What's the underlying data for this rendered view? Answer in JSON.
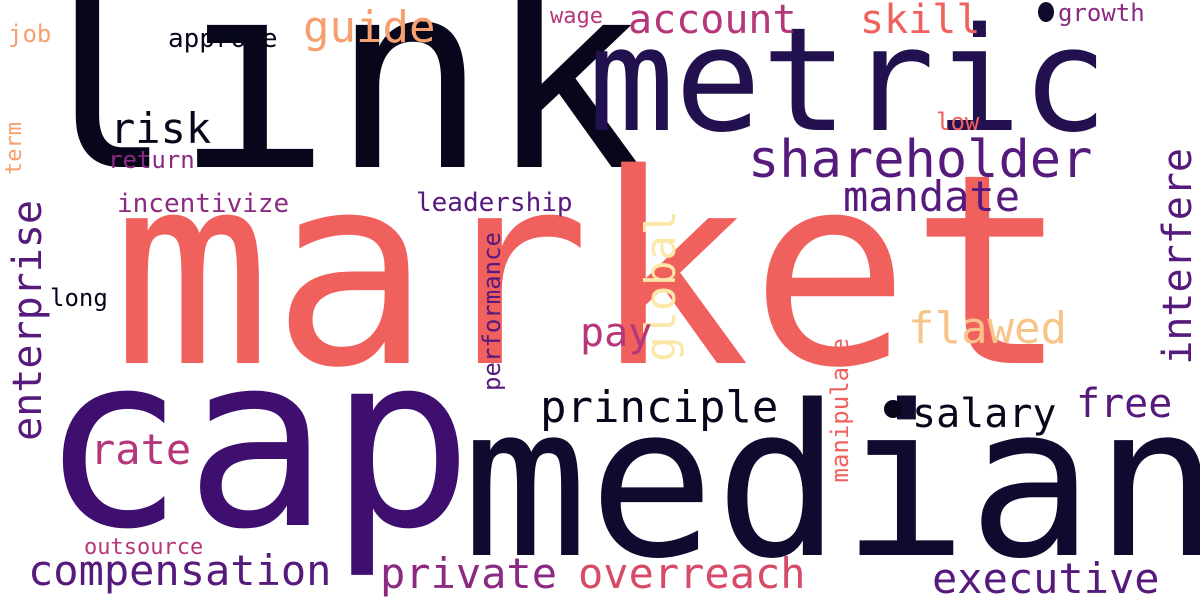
{
  "words": {
    "link": "link",
    "market": "market",
    "cap": "cap",
    "median": "median",
    "metric": "metric",
    "shareholder": "shareholder",
    "guide": "guide",
    "account": "account",
    "skill": "skill",
    "wage": "wage",
    "growth": "growth",
    "approve": "approve",
    "job": "job",
    "risk": "risk",
    "low": "low",
    "term": "term",
    "return": "return",
    "incentivize": "incentivize",
    "leadership": "leadership",
    "mandate": "mandate",
    "interfere": "interfere",
    "enterprise": "enterprise",
    "long": "long",
    "performance": "performance",
    "global": "global",
    "pay": "pay",
    "flawed": "flawed",
    "principle": "principle",
    "salary": "salary",
    "free": "free",
    "manipulate": "manipulate",
    "rate": "rate",
    "outsource": "outsource",
    "compensation": "compensation",
    "private": "private",
    "overreach": "overreach",
    "executive": "executive"
  },
  "colors": {
    "black": "#07061a",
    "navy": "#0f0b2e",
    "deep_purple": "#23104e",
    "purple": "#3f0f70",
    "violet": "#561a7d",
    "magenta": "#8b2a80",
    "pink": "#b5377a",
    "rose": "#d74b68",
    "salmon": "#f0605c",
    "orange": "#f6a070",
    "peach": "#f7c58a",
    "cream": "#fbe7a8"
  }
}
